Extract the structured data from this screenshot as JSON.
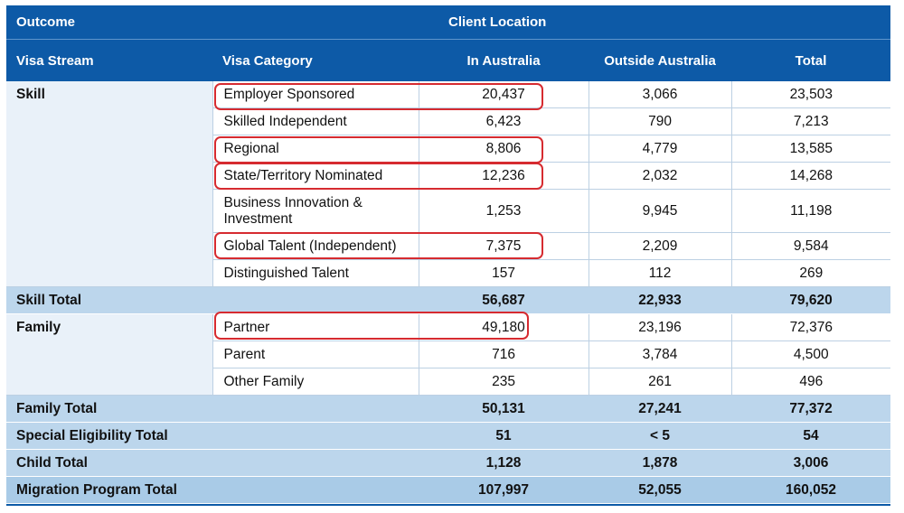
{
  "header": {
    "outcome": "Outcome",
    "client_location": "Client Location",
    "visa_stream": "Visa Stream",
    "visa_category": "Visa Category",
    "in_australia": "In Australia",
    "outside_australia": "Outside Australia",
    "total": "Total"
  },
  "skill": {
    "stream": "Skill",
    "rows": [
      {
        "category": "Employer Sponsored",
        "in": "20,437",
        "out": "3,066",
        "total": "23,503"
      },
      {
        "category": "Skilled Independent",
        "in": "6,423",
        "out": "790",
        "total": "7,213"
      },
      {
        "category": "Regional",
        "in": "8,806",
        "out": "4,779",
        "total": "13,585"
      },
      {
        "category": "State/Territory Nominated",
        "in": "12,236",
        "out": "2,032",
        "total": "14,268"
      },
      {
        "category_line1": "Business Innovation &",
        "category_line2": "Investment",
        "in": "1,253",
        "out": "9,945",
        "total": "11,198"
      },
      {
        "category": "Global Talent (Independent)",
        "in": "7,375",
        "out": "2,209",
        "total": "9,584"
      },
      {
        "category": "Distinguished Talent",
        "in": "157",
        "out": "112",
        "total": "269"
      }
    ],
    "total": {
      "label": "Skill Total",
      "in": "56,687",
      "out": "22,933",
      "total": "79,620"
    }
  },
  "family": {
    "stream": "Family",
    "rows": [
      {
        "category": "Partner",
        "in": "49,180",
        "out": "23,196",
        "total": "72,376"
      },
      {
        "category": "Parent",
        "in": "716",
        "out": "3,784",
        "total": "4,500"
      },
      {
        "category": "Other Family",
        "in": "235",
        "out": "261",
        "total": "496"
      }
    ],
    "total": {
      "label": "Family Total",
      "in": "50,131",
      "out": "27,241",
      "total": "77,372"
    }
  },
  "special": {
    "label": "Special Eligibility Total",
    "in": "51",
    "out": "< 5",
    "total": "54"
  },
  "child": {
    "label": "Child Total",
    "in": "1,128",
    "out": "1,878",
    "total": "3,006"
  },
  "program": {
    "label": "Migration Program Total",
    "in": "107,997",
    "out": "52,055",
    "total": "160,052"
  },
  "colors": {
    "header": "#0d5aa7",
    "stream_cell": "#e9f1f9",
    "total_row": "#bcd6ec",
    "highlight": "#d62b30"
  }
}
